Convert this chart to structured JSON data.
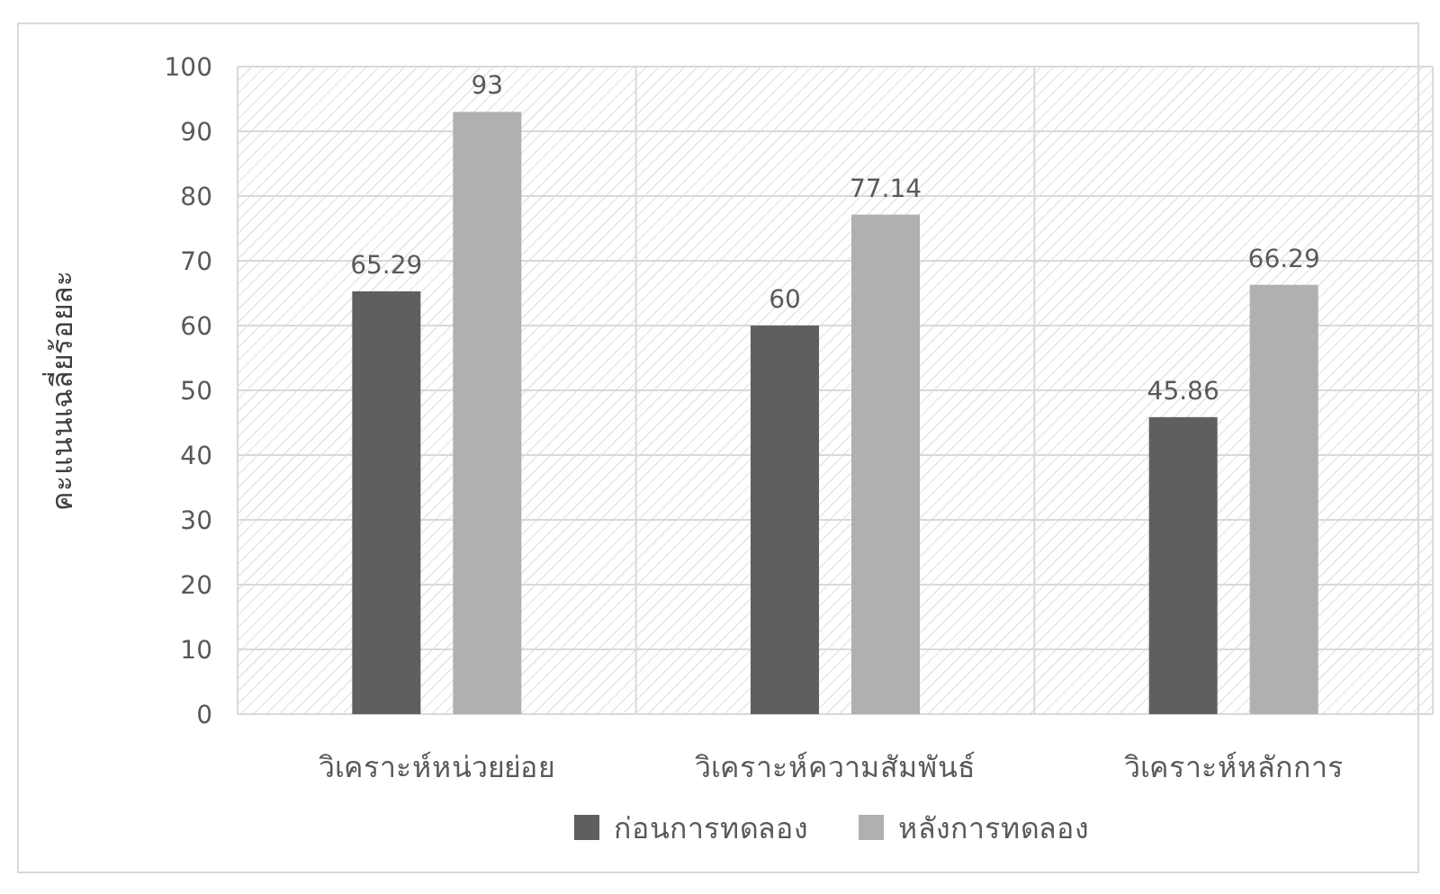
{
  "chart_data": {
    "type": "bar",
    "ylabel": "คะแนนเฉลี่ยร้อยละ",
    "categories": [
      "วิเคราะห์หน่วยย่อย",
      "วิเคราะห์ความสัมพันธ์",
      "วิเคราะห์หลักการ"
    ],
    "series": [
      {
        "name": "ก่อนการทดลอง",
        "color": "#5f5f5f",
        "values": [
          65.29,
          60,
          45.86
        ]
      },
      {
        "name": "หลังการทดลอง",
        "color": "#b0b0b0",
        "values": [
          93,
          77.14,
          66.29
        ]
      }
    ],
    "ylim": [
      0,
      100
    ],
    "yticks": [
      0,
      10,
      20,
      30,
      40,
      50,
      60,
      70,
      80,
      90,
      100
    ],
    "grid": true,
    "legend": "bottom",
    "data_labels": true
  }
}
